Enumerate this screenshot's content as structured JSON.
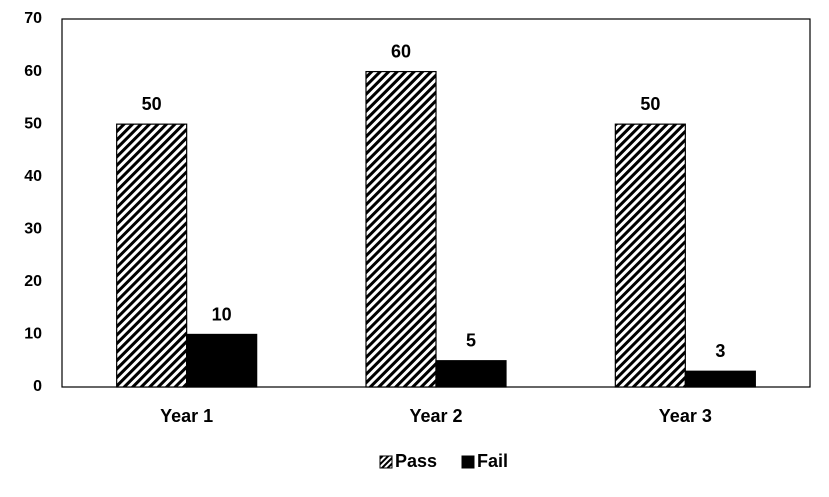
{
  "chart_data": {
    "type": "bar",
    "title": "",
    "xlabel": "",
    "ylabel": "",
    "categories": [
      "Year 1",
      "Year 2",
      "Year 3"
    ],
    "series": [
      {
        "name": "Pass",
        "values": [
          50,
          60,
          50
        ],
        "fill": "hatched",
        "color": "#000000"
      },
      {
        "name": "Fail",
        "values": [
          10,
          5,
          3
        ],
        "fill": "solid",
        "color": "#000000"
      }
    ],
    "ylim": [
      0,
      70
    ],
    "yticks": [
      0,
      10,
      20,
      30,
      40,
      50,
      60,
      70
    ],
    "grid": false,
    "legend": "bottom-center",
    "data_labels": true
  }
}
